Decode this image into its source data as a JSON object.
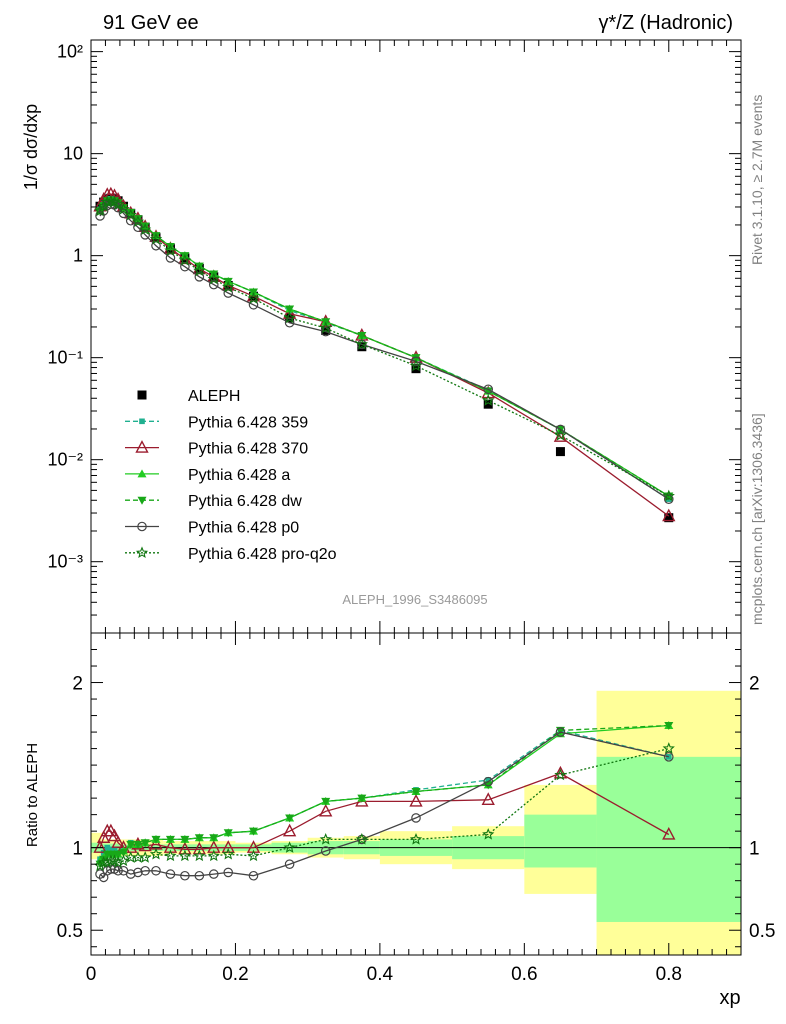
{
  "header": {
    "left": "91 GeV ee",
    "right": "γ*/Z (Hadronic)"
  },
  "side": {
    "rivet": "Rivet 3.1.10, ≥ 2.7M events",
    "mcplots": "mcplots.cern.ch [arXiv:1306.3436]"
  },
  "analysis_label": "ALEPH_1996_S3486095",
  "chart_data": [
    {
      "type": "line",
      "ylabel": "1/σ dσ/dxp",
      "yscale": "log",
      "xlim": [
        0,
        0.9
      ],
      "ylim": [
        0.0002,
        130
      ],
      "yticks": [
        "10⁻³",
        "10⁻²",
        "10⁻¹",
        "1",
        "10",
        "10²"
      ],
      "legend_position": "bottom-left",
      "series": [
        {
          "name": "ALEPH",
          "color": "#000000",
          "style": "none",
          "marker": "square-filled",
          "x": [
            0.0125,
            0.0175,
            0.0225,
            0.0275,
            0.0325,
            0.0375,
            0.045,
            0.055,
            0.065,
            0.075,
            0.09,
            0.11,
            0.13,
            0.15,
            0.17,
            0.19,
            0.225,
            0.275,
            0.325,
            0.375,
            0.45,
            0.55,
            0.65,
            0.8
          ],
          "y": [
            3.05,
            3.35,
            3.6,
            3.65,
            3.6,
            3.45,
            3.05,
            2.6,
            2.25,
            1.9,
            1.5,
            1.17,
            0.95,
            0.75,
            0.62,
            0.51,
            0.4,
            0.245,
            0.185,
            0.128,
            0.078,
            0.035,
            0.012,
            0.0027
          ]
        },
        {
          "name": "Pythia 6.428 359",
          "color": "#20b090",
          "style": "dashed",
          "marker": "square-small",
          "x": [
            0.0125,
            0.0175,
            0.0225,
            0.0275,
            0.0325,
            0.0375,
            0.045,
            0.055,
            0.065,
            0.075,
            0.09,
            0.11,
            0.13,
            0.15,
            0.17,
            0.19,
            0.225,
            0.275,
            0.325,
            0.375,
            0.45,
            0.55,
            0.65,
            0.8
          ],
          "y": [
            2.85,
            3.25,
            3.6,
            3.6,
            3.55,
            3.35,
            3.0,
            2.7,
            2.3,
            1.95,
            1.57,
            1.23,
            1.0,
            0.79,
            0.66,
            0.56,
            0.44,
            0.29,
            0.22,
            0.165,
            0.1,
            0.048,
            0.0198,
            0.0041
          ]
        },
        {
          "name": "Pythia 6.428 370",
          "color": "#9b1c2e",
          "style": "solid",
          "marker": "triangle-open",
          "x": [
            0.0125,
            0.0175,
            0.0225,
            0.0275,
            0.0325,
            0.0375,
            0.045,
            0.055,
            0.065,
            0.075,
            0.09,
            0.11,
            0.13,
            0.15,
            0.17,
            0.19,
            0.225,
            0.275,
            0.325,
            0.375,
            0.45,
            0.55,
            0.65,
            0.8
          ],
          "y": [
            3.05,
            3.55,
            3.95,
            4.0,
            3.85,
            3.55,
            3.05,
            2.6,
            2.3,
            1.92,
            1.53,
            1.17,
            0.93,
            0.74,
            0.62,
            0.51,
            0.4,
            0.27,
            0.225,
            0.165,
            0.1,
            0.045,
            0.0168,
            0.0028
          ]
        },
        {
          "name": "Pythia 6.428 a",
          "color": "#22cc22",
          "style": "solid",
          "marker": "triangle-filled",
          "x": [
            0.0125,
            0.0175,
            0.0225,
            0.0275,
            0.0325,
            0.0375,
            0.045,
            0.055,
            0.065,
            0.075,
            0.09,
            0.11,
            0.13,
            0.15,
            0.17,
            0.19,
            0.225,
            0.275,
            0.325,
            0.375,
            0.45,
            0.55,
            0.65,
            0.8
          ],
          "y": [
            2.8,
            3.15,
            3.45,
            3.5,
            3.45,
            3.3,
            2.95,
            2.65,
            2.3,
            1.95,
            1.57,
            1.23,
            1.0,
            0.79,
            0.66,
            0.56,
            0.44,
            0.3,
            0.225,
            0.165,
            0.1,
            0.047,
            0.0198,
            0.0044
          ]
        },
        {
          "name": "Pythia 6.428 dw",
          "color": "#18a818",
          "style": "dashed",
          "marker": "triangle-down-filled",
          "x": [
            0.0125,
            0.0175,
            0.0225,
            0.0275,
            0.0325,
            0.0375,
            0.045,
            0.055,
            0.065,
            0.075,
            0.09,
            0.11,
            0.13,
            0.15,
            0.17,
            0.19,
            0.225,
            0.275,
            0.325,
            0.375,
            0.45,
            0.55,
            0.65,
            0.8
          ],
          "y": [
            2.75,
            3.1,
            3.45,
            3.5,
            3.45,
            3.3,
            2.95,
            2.65,
            2.3,
            1.95,
            1.57,
            1.23,
            1.0,
            0.79,
            0.66,
            0.56,
            0.44,
            0.3,
            0.225,
            0.165,
            0.1,
            0.047,
            0.0198,
            0.0044
          ]
        },
        {
          "name": "Pythia 6.428 p0",
          "color": "#444444",
          "style": "solid",
          "marker": "circle-open",
          "x": [
            0.0125,
            0.0175,
            0.0225,
            0.0275,
            0.0325,
            0.0375,
            0.045,
            0.055,
            0.065,
            0.075,
            0.09,
            0.11,
            0.13,
            0.15,
            0.17,
            0.19,
            0.225,
            0.275,
            0.325,
            0.375,
            0.45,
            0.55,
            0.65,
            0.8
          ],
          "y": [
            2.45,
            2.75,
            3.1,
            3.2,
            3.15,
            2.95,
            2.6,
            2.2,
            1.9,
            1.6,
            1.25,
            0.95,
            0.78,
            0.62,
            0.52,
            0.43,
            0.33,
            0.22,
            0.18,
            0.135,
            0.092,
            0.049,
            0.0198,
            0.0041
          ]
        },
        {
          "name": "Pythia 6.428 pro-q2o",
          "color": "#117711",
          "style": "dotted",
          "marker": "star-open",
          "x": [
            0.0125,
            0.0175,
            0.0225,
            0.0275,
            0.0325,
            0.0375,
            0.045,
            0.055,
            0.065,
            0.075,
            0.09,
            0.11,
            0.13,
            0.15,
            0.17,
            0.19,
            0.225,
            0.275,
            0.325,
            0.375,
            0.45,
            0.55,
            0.65,
            0.8
          ],
          "y": [
            2.75,
            3.05,
            3.35,
            3.4,
            3.35,
            3.2,
            2.85,
            2.5,
            2.15,
            1.8,
            1.45,
            1.12,
            0.9,
            0.71,
            0.59,
            0.49,
            0.38,
            0.245,
            0.195,
            0.135,
            0.083,
            0.038,
            0.0173,
            0.0044
          ]
        }
      ]
    },
    {
      "type": "line",
      "ylabel": "Ratio to ALEPH",
      "xlabel": "xp",
      "xlim": [
        0,
        0.9
      ],
      "ylim": [
        0.35,
        2.3
      ],
      "xticks": [
        "0",
        "0.2",
        "0.4",
        "0.6",
        "0.8"
      ],
      "yticks": [
        "0.5",
        "1",
        "2"
      ],
      "uncertainty_bands": [
        {
          "x0": 0.0,
          "x1": 0.015,
          "inner": [
            0.97,
            1.03
          ],
          "outer": [
            0.93,
            1.09
          ]
        },
        {
          "x0": 0.015,
          "x1": 0.04,
          "inner": [
            0.975,
            1.025
          ],
          "outer": [
            0.95,
            1.05
          ]
        },
        {
          "x0": 0.04,
          "x1": 0.1,
          "inner": [
            0.98,
            1.02
          ],
          "outer": [
            0.95,
            1.05
          ]
        },
        {
          "x0": 0.1,
          "x1": 0.2,
          "inner": [
            0.98,
            1.02
          ],
          "outer": [
            0.96,
            1.04
          ]
        },
        {
          "x0": 0.2,
          "x1": 0.25,
          "inner": [
            0.98,
            1.02
          ],
          "outer": [
            0.97,
            1.03
          ]
        },
        {
          "x0": 0.25,
          "x1": 0.3,
          "inner": [
            0.97,
            1.03
          ],
          "outer": [
            0.96,
            1.04
          ]
        },
        {
          "x0": 0.3,
          "x1": 0.35,
          "inner": [
            0.96,
            1.04
          ],
          "outer": [
            0.94,
            1.06
          ]
        },
        {
          "x0": 0.35,
          "x1": 0.4,
          "inner": [
            0.96,
            1.04
          ],
          "outer": [
            0.93,
            1.07
          ]
        },
        {
          "x0": 0.4,
          "x1": 0.5,
          "inner": [
            0.95,
            1.05
          ],
          "outer": [
            0.9,
            1.1
          ]
        },
        {
          "x0": 0.5,
          "x1": 0.6,
          "inner": [
            0.93,
            1.07
          ],
          "outer": [
            0.87,
            1.13
          ]
        },
        {
          "x0": 0.6,
          "x1": 0.7,
          "inner": [
            0.88,
            1.2
          ],
          "outer": [
            0.72,
            1.38
          ]
        },
        {
          "x0": 0.7,
          "x1": 0.9,
          "inner": [
            0.55,
            1.55
          ],
          "outer": [
            0.0,
            1.95
          ]
        }
      ],
      "series": [
        {
          "name": "Pythia 6.428 359",
          "color": "#20b090",
          "style": "dashed",
          "marker": "square-small",
          "x": [
            0.0125,
            0.0175,
            0.0225,
            0.0275,
            0.0325,
            0.0375,
            0.045,
            0.055,
            0.065,
            0.075,
            0.09,
            0.11,
            0.13,
            0.15,
            0.17,
            0.19,
            0.225,
            0.275,
            0.325,
            0.375,
            0.45,
            0.55,
            0.65,
            0.8
          ],
          "y": [
            0.93,
            0.97,
            1.0,
            0.99,
            0.99,
            0.97,
            0.98,
            1.03,
            1.02,
            1.03,
            1.05,
            1.05,
            1.05,
            1.06,
            1.06,
            1.09,
            1.1,
            1.18,
            1.28,
            1.3,
            1.35,
            1.41,
            1.71,
            1.55
          ]
        },
        {
          "name": "Pythia 6.428 370",
          "color": "#9b1c2e",
          "style": "solid",
          "marker": "triangle-open",
          "x": [
            0.0125,
            0.0175,
            0.0225,
            0.0275,
            0.0325,
            0.0375,
            0.045,
            0.055,
            0.065,
            0.075,
            0.09,
            0.11,
            0.13,
            0.15,
            0.17,
            0.19,
            0.225,
            0.275,
            0.325,
            0.375,
            0.45,
            0.55,
            0.65,
            0.8
          ],
          "y": [
            1.0,
            1.06,
            1.1,
            1.1,
            1.07,
            1.03,
            1.0,
            1.0,
            1.02,
            1.01,
            1.02,
            1.0,
            0.99,
            0.99,
            1.0,
            1.0,
            1.0,
            1.1,
            1.22,
            1.28,
            1.28,
            1.29,
            1.45,
            1.08
          ]
        },
        {
          "name": "Pythia 6.428 a",
          "color": "#22cc22",
          "style": "solid",
          "marker": "triangle-filled",
          "x": [
            0.0125,
            0.0175,
            0.0225,
            0.0275,
            0.0325,
            0.0375,
            0.045,
            0.055,
            0.065,
            0.075,
            0.09,
            0.11,
            0.13,
            0.15,
            0.17,
            0.19,
            0.225,
            0.275,
            0.325,
            0.375,
            0.45,
            0.55,
            0.65,
            0.8
          ],
          "y": [
            0.92,
            0.94,
            0.96,
            0.96,
            0.96,
            0.96,
            0.98,
            1.02,
            1.02,
            1.03,
            1.05,
            1.05,
            1.05,
            1.06,
            1.06,
            1.09,
            1.1,
            1.18,
            1.28,
            1.3,
            1.34,
            1.38,
            1.69,
            1.74
          ]
        },
        {
          "name": "Pythia 6.428 dw",
          "color": "#18a818",
          "style": "dashed",
          "marker": "triangle-down-filled",
          "x": [
            0.0125,
            0.0175,
            0.0225,
            0.0275,
            0.0325,
            0.0375,
            0.045,
            0.055,
            0.065,
            0.075,
            0.09,
            0.11,
            0.13,
            0.15,
            0.17,
            0.19,
            0.225,
            0.275,
            0.325,
            0.375,
            0.45,
            0.55,
            0.65,
            0.8
          ],
          "y": [
            0.9,
            0.93,
            0.96,
            0.96,
            0.96,
            0.96,
            0.97,
            1.02,
            1.02,
            1.03,
            1.05,
            1.05,
            1.05,
            1.06,
            1.06,
            1.09,
            1.1,
            1.18,
            1.28,
            1.3,
            1.34,
            1.38,
            1.71,
            1.74
          ]
        },
        {
          "name": "Pythia 6.428 p0",
          "color": "#444444",
          "style": "solid",
          "marker": "circle-open",
          "x": [
            0.0125,
            0.0175,
            0.0225,
            0.0275,
            0.0325,
            0.0375,
            0.045,
            0.055,
            0.065,
            0.075,
            0.09,
            0.11,
            0.13,
            0.15,
            0.17,
            0.19,
            0.225,
            0.275,
            0.325,
            0.375,
            0.45,
            0.55,
            0.65,
            0.8
          ],
          "y": [
            0.84,
            0.82,
            0.86,
            0.87,
            0.87,
            0.86,
            0.86,
            0.84,
            0.85,
            0.86,
            0.86,
            0.84,
            0.83,
            0.83,
            0.84,
            0.85,
            0.83,
            0.9,
            0.98,
            1.05,
            1.18,
            1.4,
            1.7,
            1.55
          ]
        },
        {
          "name": "Pythia 6.428 pro-q2o",
          "color": "#117711",
          "style": "dotted",
          "marker": "star-open",
          "x": [
            0.0125,
            0.0175,
            0.0225,
            0.0275,
            0.0325,
            0.0375,
            0.045,
            0.055,
            0.065,
            0.075,
            0.09,
            0.11,
            0.13,
            0.15,
            0.17,
            0.19,
            0.225,
            0.275,
            0.325,
            0.375,
            0.45,
            0.55,
            0.65,
            0.8
          ],
          "y": [
            0.89,
            0.91,
            0.91,
            0.92,
            0.92,
            0.91,
            0.92,
            0.94,
            0.94,
            0.94,
            0.96,
            0.95,
            0.95,
            0.95,
            0.95,
            0.96,
            0.95,
            1.0,
            1.05,
            1.05,
            1.05,
            1.08,
            1.44,
            1.6
          ]
        }
      ]
    }
  ]
}
